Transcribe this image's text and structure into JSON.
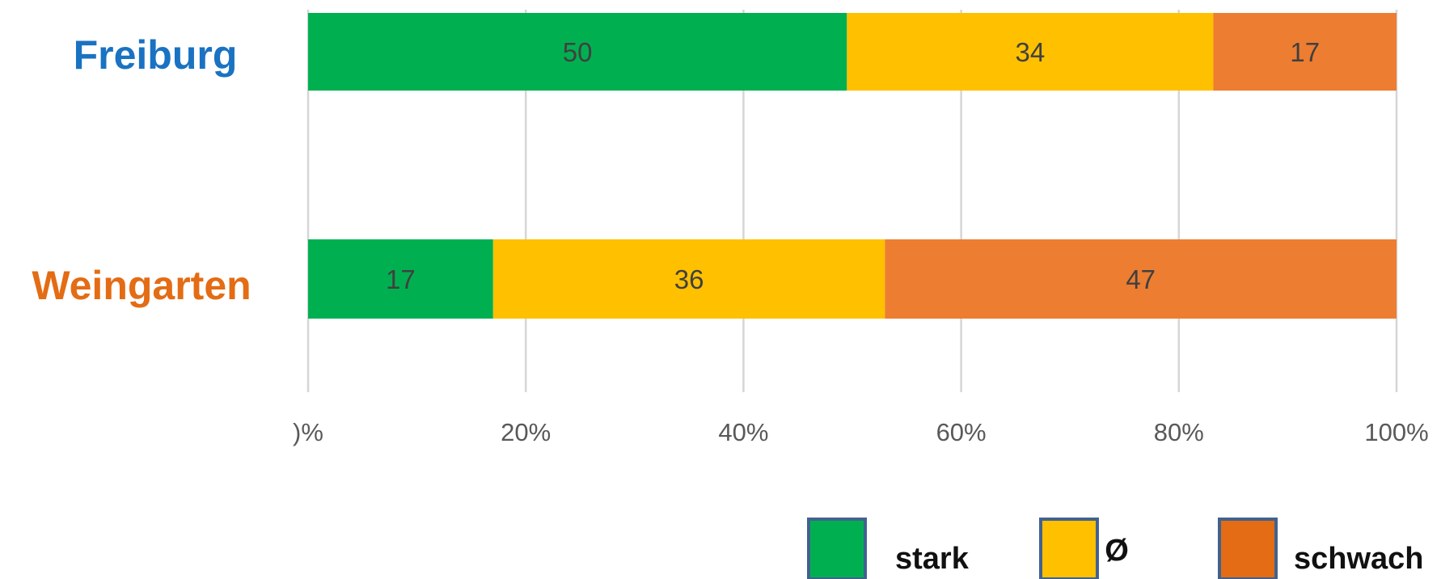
{
  "chart_data": {
    "type": "bar",
    "orientation": "horizontal",
    "stacked": true,
    "percent": true,
    "categories": [
      "Freiburg",
      "Weingarten"
    ],
    "category_colors": [
      "#1a72c2",
      "#e36c14"
    ],
    "series": [
      {
        "name": "stark",
        "values": [
          50,
          17
        ],
        "color": "#00b050"
      },
      {
        "name": "Ø",
        "values": [
          34,
          36
        ],
        "color": "#ffc000"
      },
      {
        "name": "schwach",
        "values": [
          17,
          47
        ],
        "color": "#ed7d31"
      }
    ],
    "data_labels": [
      [
        "50",
        "17"
      ],
      [
        "34",
        "36"
      ],
      [
        "17",
        "47"
      ]
    ],
    "x_ticks": [
      ")%",
      "20%",
      "40%",
      "60%",
      "80%",
      "100%"
    ],
    "xlim": [
      0,
      100
    ],
    "grid": true,
    "legend": {
      "placement": "bottom-right",
      "items": [
        "stark",
        "Ø",
        "schwach"
      ],
      "swatch_colors": [
        "#00b050",
        "#ffc000",
        "#e36c14"
      ],
      "swatch_border": "#41628f"
    }
  }
}
